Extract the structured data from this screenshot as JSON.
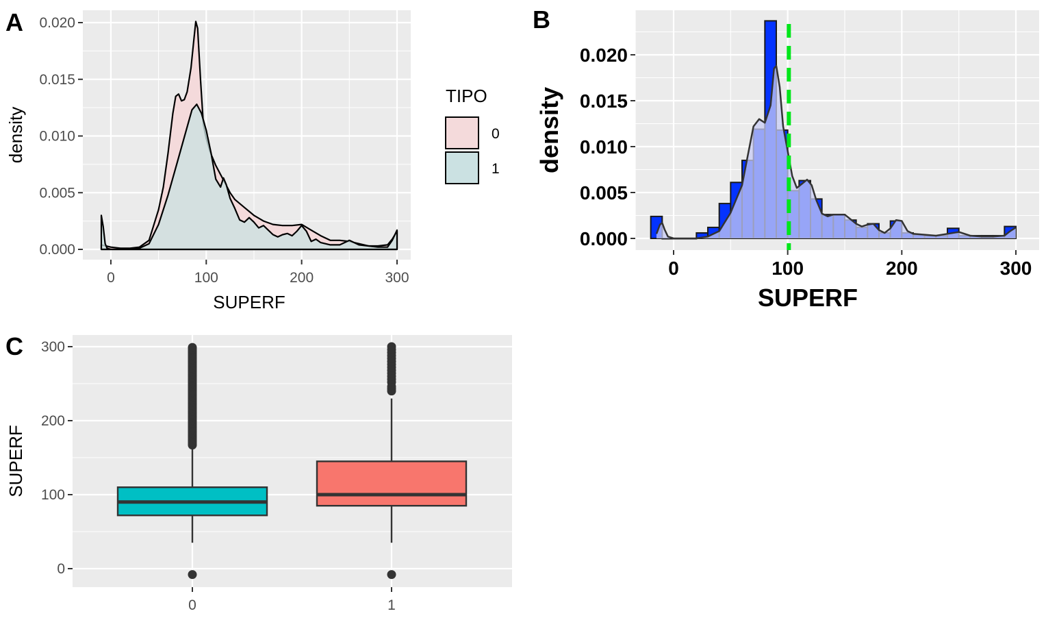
{
  "chart_data": [
    {
      "panel_tag": "A",
      "type": "area",
      "xlabel": "SUPERF",
      "ylabel": "density",
      "xlim": [
        -10,
        302
      ],
      "ylim": [
        0,
        0.0205
      ],
      "xticks": [
        0,
        100,
        200,
        300
      ],
      "yticks": [
        "0.000",
        "0.005",
        "0.010",
        "0.015",
        "0.020"
      ],
      "legend": {
        "title": "TIPO",
        "position": "right",
        "entries": [
          "0",
          "1"
        ]
      },
      "series": [
        {
          "name": "0",
          "color": "#F8766D",
          "fill": "#f4dadb",
          "points": [
            [
              -10,
              0.0004
            ],
            [
              0,
              0.0002
            ],
            [
              10,
              0.0001
            ],
            [
              20,
              0.0001
            ],
            [
              30,
              0.0002
            ],
            [
              40,
              0.0008
            ],
            [
              50,
              0.0035
            ],
            [
              55,
              0.0055
            ],
            [
              60,
              0.0085
            ],
            [
              65,
              0.012
            ],
            [
              68,
              0.0135
            ],
            [
              71,
              0.0137
            ],
            [
              74,
              0.0131
            ],
            [
              77,
              0.0132
            ],
            [
              80,
              0.0139
            ],
            [
              84,
              0.016
            ],
            [
              87,
              0.0185
            ],
            [
              89,
              0.0201
            ],
            [
              91,
              0.0195
            ],
            [
              94,
              0.015
            ],
            [
              97,
              0.011
            ],
            [
              100,
              0.0098
            ],
            [
              104,
              0.0086
            ],
            [
              110,
              0.0074
            ],
            [
              115,
              0.0066
            ],
            [
              120,
              0.0058
            ],
            [
              125,
              0.005
            ],
            [
              130,
              0.0044
            ],
            [
              140,
              0.0037
            ],
            [
              150,
              0.003
            ],
            [
              160,
              0.0025
            ],
            [
              170,
              0.0022
            ],
            [
              180,
              0.0021
            ],
            [
              190,
              0.0021
            ],
            [
              200,
              0.0022
            ],
            [
              210,
              0.0017
            ],
            [
              220,
              0.0012
            ],
            [
              230,
              0.0008
            ],
            [
              240,
              0.0008
            ],
            [
              250,
              0.0007
            ],
            [
              260,
              0.0005
            ],
            [
              270,
              0.0003
            ],
            [
              280,
              0.0003
            ],
            [
              290,
              0.0004
            ],
            [
              295,
              0.0009
            ],
            [
              300,
              0.0016
            ]
          ]
        },
        {
          "name": "1",
          "color": "#00BFC4",
          "fill": "#cbe1e2",
          "points": [
            [
              -10,
              0.003
            ],
            [
              -8,
              0.002
            ],
            [
              -6,
              0.0005
            ],
            [
              -4,
              0.0001
            ],
            [
              0,
              0
            ],
            [
              10,
              0
            ],
            [
              20,
              0
            ],
            [
              30,
              0.0001
            ],
            [
              40,
              0.0005
            ],
            [
              50,
              0.0022
            ],
            [
              60,
              0.0048
            ],
            [
              70,
              0.0078
            ],
            [
              80,
              0.0108
            ],
            [
              85,
              0.0123
            ],
            [
              90,
              0.0128
            ],
            [
              95,
              0.012
            ],
            [
              100,
              0.0105
            ],
            [
              105,
              0.0085
            ],
            [
              110,
              0.0062
            ],
            [
              115,
              0.0055
            ],
            [
              118,
              0.0063
            ],
            [
              121,
              0.0057
            ],
            [
              125,
              0.0045
            ],
            [
              130,
              0.0036
            ],
            [
              135,
              0.0026
            ],
            [
              140,
              0.0024
            ],
            [
              145,
              0.0028
            ],
            [
              150,
              0.0024
            ],
            [
              155,
              0.0019
            ],
            [
              160,
              0.0021
            ],
            [
              165,
              0.0017
            ],
            [
              170,
              0.0013
            ],
            [
              175,
              0.0011
            ],
            [
              180,
              0.0013
            ],
            [
              185,
              0.0014
            ],
            [
              190,
              0.0012
            ],
            [
              195,
              0.0016
            ],
            [
              200,
              0.0021
            ],
            [
              205,
              0.0016
            ],
            [
              210,
              0.0007
            ],
            [
              215,
              0.0009
            ],
            [
              220,
              0.0006
            ],
            [
              230,
              0.0004
            ],
            [
              240,
              0.0004
            ],
            [
              250,
              0.0008
            ],
            [
              260,
              0.0004
            ],
            [
              270,
              0.0003
            ],
            [
              280,
              0.0002
            ],
            [
              290,
              0.0002
            ],
            [
              295,
              0.0008
            ],
            [
              300,
              0.0017
            ]
          ]
        }
      ]
    },
    {
      "panel_tag": "B",
      "type": "bar",
      "xlabel": "SUPERF",
      "ylabel": "density",
      "xlim": [
        -16,
        305
      ],
      "ylim": [
        0,
        0.024
      ],
      "xticks": [
        0,
        100,
        200,
        300
      ],
      "yticks": [
        "0.000",
        "0.005",
        "0.010",
        "0.015",
        "0.020"
      ],
      "bar_color": "#0433ff",
      "bin_width": 10,
      "bins": [
        [
          -15,
          0.0024
        ],
        [
          -5,
          0
        ],
        [
          5,
          0
        ],
        [
          15,
          0
        ],
        [
          25,
          0.0006
        ],
        [
          35,
          0.0012
        ],
        [
          45,
          0.0038
        ],
        [
          55,
          0.0061
        ],
        [
          65,
          0.0085
        ],
        [
          75,
          0.0119
        ],
        [
          85,
          0.0237
        ],
        [
          95,
          0.0118
        ],
        [
          105,
          0.0052
        ],
        [
          115,
          0.0063
        ],
        [
          125,
          0.0043
        ],
        [
          135,
          0.0026
        ],
        [
          145,
          0.0026
        ],
        [
          155,
          0.002
        ],
        [
          165,
          0.0012
        ],
        [
          175,
          0.0016
        ],
        [
          185,
          0.0006
        ],
        [
          195,
          0.0019
        ],
        [
          205,
          0.0006
        ],
        [
          215,
          0.0004
        ],
        [
          225,
          0.0003
        ],
        [
          235,
          0.0003
        ],
        [
          245,
          0.0011
        ],
        [
          255,
          0.0003
        ],
        [
          265,
          0.0003
        ],
        [
          275,
          0.0003
        ],
        [
          285,
          0.0003
        ],
        [
          295,
          0.0013
        ]
      ],
      "density_curve": {
        "color": "#333333",
        "fill": "#c8ccf4",
        "points": [
          [
            -15,
            0.0005
          ],
          [
            -12,
            0.0015
          ],
          [
            -10,
            0.0017
          ],
          [
            -8,
            0.001
          ],
          [
            -5,
            0.0002
          ],
          [
            0,
            0
          ],
          [
            10,
            0
          ],
          [
            20,
            0
          ],
          [
            30,
            0.0002
          ],
          [
            40,
            0.0008
          ],
          [
            50,
            0.0028
          ],
          [
            60,
            0.0058
          ],
          [
            65,
            0.009
          ],
          [
            70,
            0.0122
          ],
          [
            75,
            0.013
          ],
          [
            80,
            0.0126
          ],
          [
            85,
            0.0145
          ],
          [
            88,
            0.0185
          ],
          [
            90,
            0.0188
          ],
          [
            93,
            0.0165
          ],
          [
            96,
            0.0122
          ],
          [
            100,
            0.0095
          ],
          [
            104,
            0.0068
          ],
          [
            108,
            0.0055
          ],
          [
            113,
            0.006
          ],
          [
            117,
            0.0064
          ],
          [
            121,
            0.0058
          ],
          [
            125,
            0.0042
          ],
          [
            130,
            0.0027
          ],
          [
            135,
            0.0024
          ],
          [
            140,
            0.0026
          ],
          [
            145,
            0.0026
          ],
          [
            150,
            0.0026
          ],
          [
            155,
            0.0021
          ],
          [
            160,
            0.0016
          ],
          [
            165,
            0.0013
          ],
          [
            170,
            0.0015
          ],
          [
            175,
            0.0016
          ],
          [
            180,
            0.0009
          ],
          [
            185,
            0.0006
          ],
          [
            190,
            0.0011
          ],
          [
            195,
            0.002
          ],
          [
            200,
            0.0019
          ],
          [
            205,
            0.0008
          ],
          [
            210,
            0.0005
          ],
          [
            220,
            0.0004
          ],
          [
            230,
            0.0003
          ],
          [
            240,
            0.0005
          ],
          [
            250,
            0.0007
          ],
          [
            260,
            0.0003
          ],
          [
            270,
            0.0002
          ],
          [
            280,
            0.0002
          ],
          [
            290,
            0.0003
          ],
          [
            295,
            0.0008
          ],
          [
            300,
            0.0012
          ]
        ]
      },
      "mean_line": {
        "x": 101,
        "color": "#00e61a"
      }
    },
    {
      "panel_tag": "C",
      "type": "box",
      "xlabel": "",
      "ylabel": "SUPERF",
      "categories": [
        "0",
        "1"
      ],
      "ylim": [
        -25,
        315
      ],
      "yticks": [
        0,
        100,
        200,
        300
      ],
      "boxes": [
        {
          "category": "0",
          "fill": "#00BFC4",
          "q1": 72,
          "median": 90,
          "q3": 110,
          "whisker_low": 35,
          "whisker_high": 166,
          "outliers": [
            -8,
            167,
            169,
            171,
            173,
            175,
            177,
            179,
            181,
            183,
            185,
            187,
            189,
            191,
            193,
            195,
            197,
            199,
            201,
            203,
            205,
            207,
            209,
            211,
            213,
            215,
            217,
            219,
            221,
            223,
            225,
            227,
            229,
            231,
            233,
            235,
            237,
            239,
            241,
            243,
            245,
            247,
            249,
            251,
            253,
            255,
            257,
            259,
            261,
            263,
            265,
            267,
            269,
            271,
            273,
            275,
            277,
            279,
            281,
            283,
            285,
            287,
            289,
            291,
            293,
            295,
            297,
            299
          ]
        },
        {
          "category": "1",
          "fill": "#F8766D",
          "q1": 85,
          "median": 100,
          "q3": 145,
          "whisker_low": 35,
          "whisker_high": 230,
          "outliers": [
            -8,
            240,
            243,
            246,
            252,
            256,
            260,
            264,
            268,
            272,
            276,
            280,
            284,
            288,
            292,
            296,
            300
          ]
        }
      ]
    }
  ]
}
